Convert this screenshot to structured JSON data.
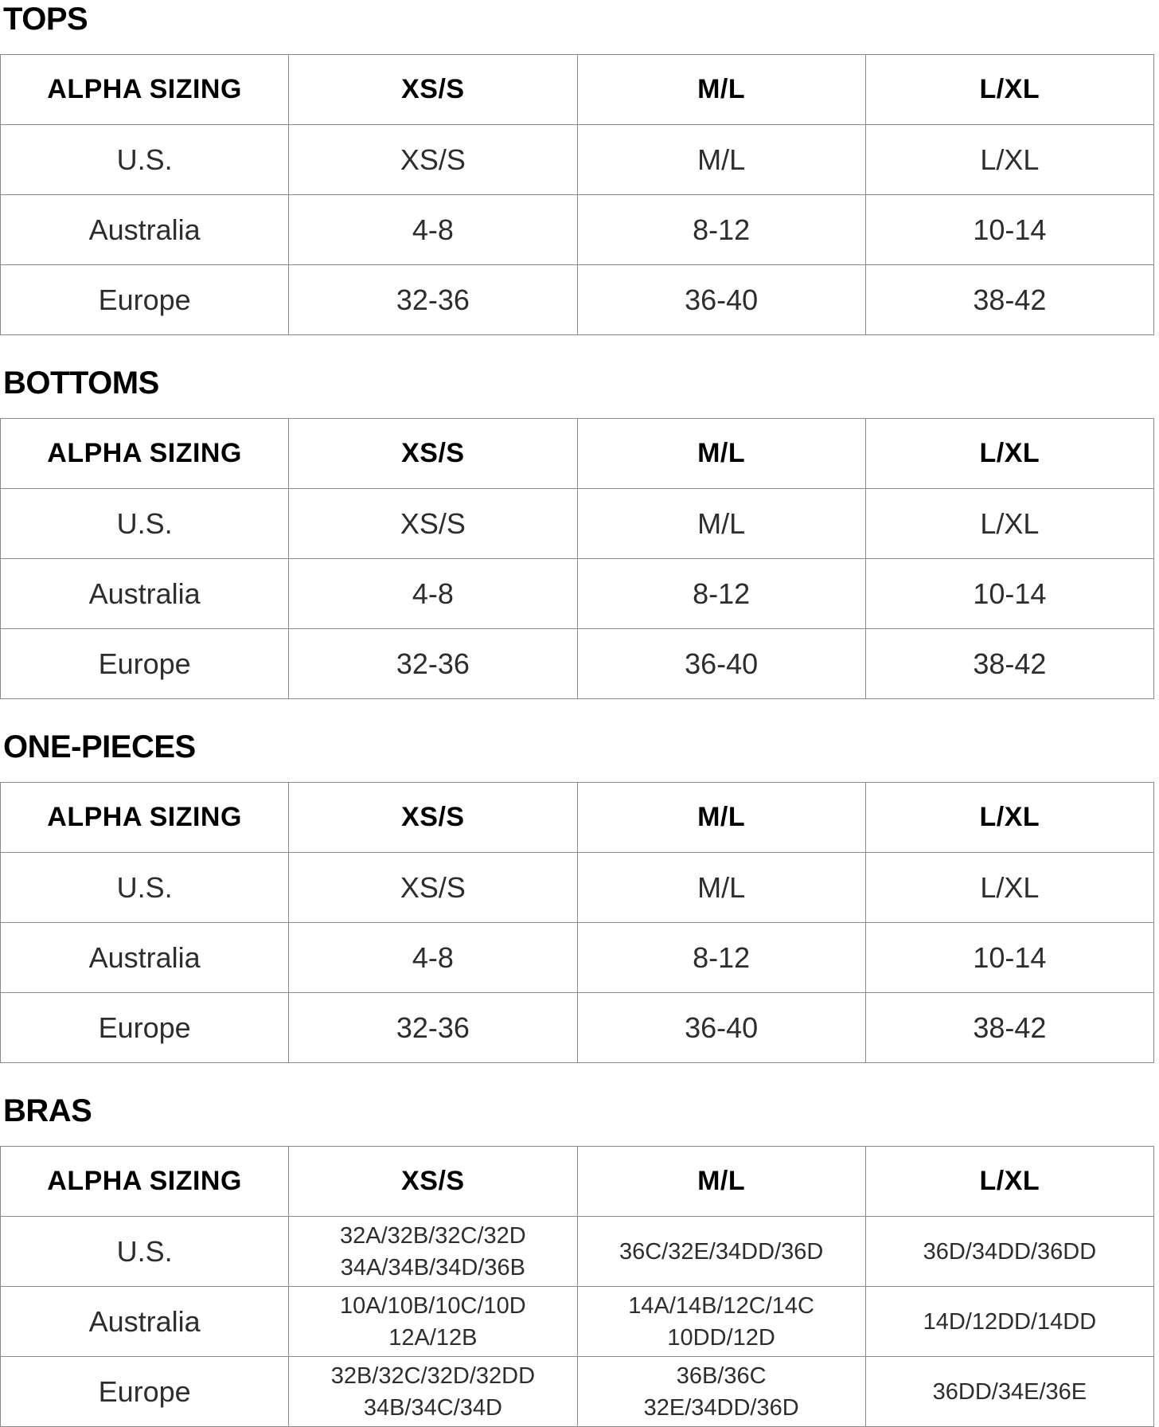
{
  "page": {
    "background": "#ffffff",
    "heading_color": "#000000",
    "body_text_color": "#2d2d2d",
    "table_border_color": "#8a8a8a"
  },
  "columns": [
    "ALPHA SIZING",
    "XS/S",
    "M/L",
    "L/XL"
  ],
  "sections": [
    {
      "title": "TOPS",
      "dense": false,
      "rows": [
        {
          "label": "U.S.",
          "values": [
            [
              "XS/S"
            ],
            [
              "M/L"
            ],
            [
              "L/XL"
            ]
          ]
        },
        {
          "label": "Australia",
          "values": [
            [
              "4-8"
            ],
            [
              "8-12"
            ],
            [
              "10-14"
            ]
          ]
        },
        {
          "label": "Europe",
          "values": [
            [
              "32-36"
            ],
            [
              "36-40"
            ],
            [
              "38-42"
            ]
          ]
        }
      ]
    },
    {
      "title": "BOTTOMS",
      "dense": false,
      "rows": [
        {
          "label": "U.S.",
          "values": [
            [
              "XS/S"
            ],
            [
              "M/L"
            ],
            [
              "L/XL"
            ]
          ]
        },
        {
          "label": "Australia",
          "values": [
            [
              "4-8"
            ],
            [
              "8-12"
            ],
            [
              "10-14"
            ]
          ]
        },
        {
          "label": "Europe",
          "values": [
            [
              "32-36"
            ],
            [
              "36-40"
            ],
            [
              "38-42"
            ]
          ]
        }
      ]
    },
    {
      "title": "ONE-PIECES",
      "dense": false,
      "rows": [
        {
          "label": "U.S.",
          "values": [
            [
              "XS/S"
            ],
            [
              "M/L"
            ],
            [
              "L/XL"
            ]
          ]
        },
        {
          "label": "Australia",
          "values": [
            [
              "4-8"
            ],
            [
              "8-12"
            ],
            [
              "10-14"
            ]
          ]
        },
        {
          "label": "Europe",
          "values": [
            [
              "32-36"
            ],
            [
              "36-40"
            ],
            [
              "38-42"
            ]
          ]
        }
      ]
    },
    {
      "title": "BRAS",
      "dense": true,
      "rows": [
        {
          "label": "U.S.",
          "values": [
            [
              "32A/32B/32C/32D",
              "34A/34B/34D/36B"
            ],
            [
              "36C/32E/34DD/36D"
            ],
            [
              "36D/34DD/36DD"
            ]
          ]
        },
        {
          "label": "Australia",
          "values": [
            [
              "10A/10B/10C/10D",
              "12A/12B"
            ],
            [
              "14A/14B/12C/14C",
              "10DD/12D"
            ],
            [
              "14D/12DD/14DD"
            ]
          ]
        },
        {
          "label": "Europe",
          "values": [
            [
              "32B/32C/32D/32DD",
              "34B/34C/34D"
            ],
            [
              "36B/36C",
              "32E/34DD/36D"
            ],
            [
              "36DD/34E/36E"
            ]
          ]
        }
      ]
    }
  ]
}
